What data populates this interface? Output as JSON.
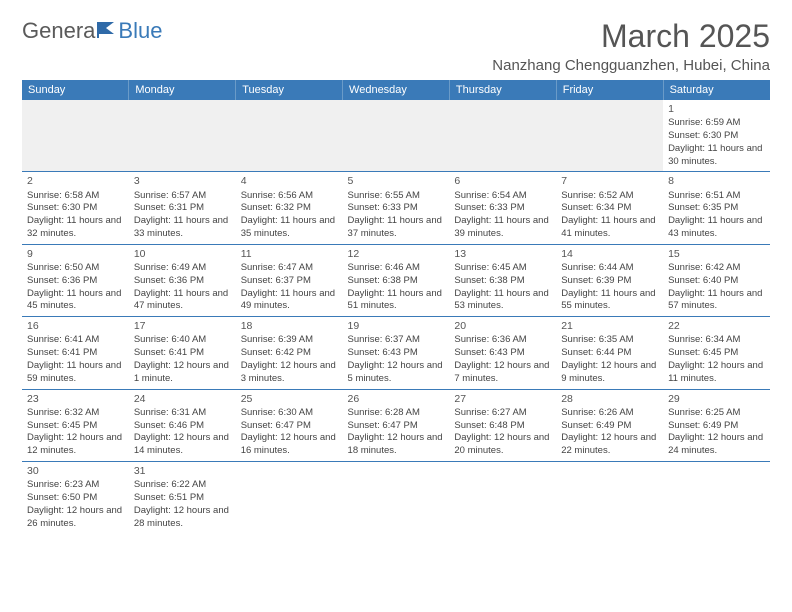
{
  "logo": {
    "text_general": "Genera",
    "text_blue": "Blue"
  },
  "title": "March 2025",
  "location": "Nanzhang Chengguanzhen, Hubei, China",
  "colors": {
    "header_bg": "#3a7ab8",
    "header_text": "#ffffff",
    "border": "#3a7ab8",
    "empty_bg": "#f0f0f0",
    "text": "#444444"
  },
  "typography": {
    "title_fontsize": 32,
    "location_fontsize": 15,
    "dayheader_fontsize": 11,
    "cell_fontsize": 9.5
  },
  "day_names": [
    "Sunday",
    "Monday",
    "Tuesday",
    "Wednesday",
    "Thursday",
    "Friday",
    "Saturday"
  ],
  "weeks": [
    [
      null,
      null,
      null,
      null,
      null,
      null,
      {
        "n": "1",
        "sr": "Sunrise: 6:59 AM",
        "ss": "Sunset: 6:30 PM",
        "dl": "Daylight: 11 hours and 30 minutes."
      }
    ],
    [
      {
        "n": "2",
        "sr": "Sunrise: 6:58 AM",
        "ss": "Sunset: 6:30 PM",
        "dl": "Daylight: 11 hours and 32 minutes."
      },
      {
        "n": "3",
        "sr": "Sunrise: 6:57 AM",
        "ss": "Sunset: 6:31 PM",
        "dl": "Daylight: 11 hours and 33 minutes."
      },
      {
        "n": "4",
        "sr": "Sunrise: 6:56 AM",
        "ss": "Sunset: 6:32 PM",
        "dl": "Daylight: 11 hours and 35 minutes."
      },
      {
        "n": "5",
        "sr": "Sunrise: 6:55 AM",
        "ss": "Sunset: 6:33 PM",
        "dl": "Daylight: 11 hours and 37 minutes."
      },
      {
        "n": "6",
        "sr": "Sunrise: 6:54 AM",
        "ss": "Sunset: 6:33 PM",
        "dl": "Daylight: 11 hours and 39 minutes."
      },
      {
        "n": "7",
        "sr": "Sunrise: 6:52 AM",
        "ss": "Sunset: 6:34 PM",
        "dl": "Daylight: 11 hours and 41 minutes."
      },
      {
        "n": "8",
        "sr": "Sunrise: 6:51 AM",
        "ss": "Sunset: 6:35 PM",
        "dl": "Daylight: 11 hours and 43 minutes."
      }
    ],
    [
      {
        "n": "9",
        "sr": "Sunrise: 6:50 AM",
        "ss": "Sunset: 6:36 PM",
        "dl": "Daylight: 11 hours and 45 minutes."
      },
      {
        "n": "10",
        "sr": "Sunrise: 6:49 AM",
        "ss": "Sunset: 6:36 PM",
        "dl": "Daylight: 11 hours and 47 minutes."
      },
      {
        "n": "11",
        "sr": "Sunrise: 6:47 AM",
        "ss": "Sunset: 6:37 PM",
        "dl": "Daylight: 11 hours and 49 minutes."
      },
      {
        "n": "12",
        "sr": "Sunrise: 6:46 AM",
        "ss": "Sunset: 6:38 PM",
        "dl": "Daylight: 11 hours and 51 minutes."
      },
      {
        "n": "13",
        "sr": "Sunrise: 6:45 AM",
        "ss": "Sunset: 6:38 PM",
        "dl": "Daylight: 11 hours and 53 minutes."
      },
      {
        "n": "14",
        "sr": "Sunrise: 6:44 AM",
        "ss": "Sunset: 6:39 PM",
        "dl": "Daylight: 11 hours and 55 minutes."
      },
      {
        "n": "15",
        "sr": "Sunrise: 6:42 AM",
        "ss": "Sunset: 6:40 PM",
        "dl": "Daylight: 11 hours and 57 minutes."
      }
    ],
    [
      {
        "n": "16",
        "sr": "Sunrise: 6:41 AM",
        "ss": "Sunset: 6:41 PM",
        "dl": "Daylight: 11 hours and 59 minutes."
      },
      {
        "n": "17",
        "sr": "Sunrise: 6:40 AM",
        "ss": "Sunset: 6:41 PM",
        "dl": "Daylight: 12 hours and 1 minute."
      },
      {
        "n": "18",
        "sr": "Sunrise: 6:39 AM",
        "ss": "Sunset: 6:42 PM",
        "dl": "Daylight: 12 hours and 3 minutes."
      },
      {
        "n": "19",
        "sr": "Sunrise: 6:37 AM",
        "ss": "Sunset: 6:43 PM",
        "dl": "Daylight: 12 hours and 5 minutes."
      },
      {
        "n": "20",
        "sr": "Sunrise: 6:36 AM",
        "ss": "Sunset: 6:43 PM",
        "dl": "Daylight: 12 hours and 7 minutes."
      },
      {
        "n": "21",
        "sr": "Sunrise: 6:35 AM",
        "ss": "Sunset: 6:44 PM",
        "dl": "Daylight: 12 hours and 9 minutes."
      },
      {
        "n": "22",
        "sr": "Sunrise: 6:34 AM",
        "ss": "Sunset: 6:45 PM",
        "dl": "Daylight: 12 hours and 11 minutes."
      }
    ],
    [
      {
        "n": "23",
        "sr": "Sunrise: 6:32 AM",
        "ss": "Sunset: 6:45 PM",
        "dl": "Daylight: 12 hours and 12 minutes."
      },
      {
        "n": "24",
        "sr": "Sunrise: 6:31 AM",
        "ss": "Sunset: 6:46 PM",
        "dl": "Daylight: 12 hours and 14 minutes."
      },
      {
        "n": "25",
        "sr": "Sunrise: 6:30 AM",
        "ss": "Sunset: 6:47 PM",
        "dl": "Daylight: 12 hours and 16 minutes."
      },
      {
        "n": "26",
        "sr": "Sunrise: 6:28 AM",
        "ss": "Sunset: 6:47 PM",
        "dl": "Daylight: 12 hours and 18 minutes."
      },
      {
        "n": "27",
        "sr": "Sunrise: 6:27 AM",
        "ss": "Sunset: 6:48 PM",
        "dl": "Daylight: 12 hours and 20 minutes."
      },
      {
        "n": "28",
        "sr": "Sunrise: 6:26 AM",
        "ss": "Sunset: 6:49 PM",
        "dl": "Daylight: 12 hours and 22 minutes."
      },
      {
        "n": "29",
        "sr": "Sunrise: 6:25 AM",
        "ss": "Sunset: 6:49 PM",
        "dl": "Daylight: 12 hours and 24 minutes."
      }
    ],
    [
      {
        "n": "30",
        "sr": "Sunrise: 6:23 AM",
        "ss": "Sunset: 6:50 PM",
        "dl": "Daylight: 12 hours and 26 minutes."
      },
      {
        "n": "31",
        "sr": "Sunrise: 6:22 AM",
        "ss": "Sunset: 6:51 PM",
        "dl": "Daylight: 12 hours and 28 minutes."
      },
      null,
      null,
      null,
      null,
      null
    ]
  ]
}
